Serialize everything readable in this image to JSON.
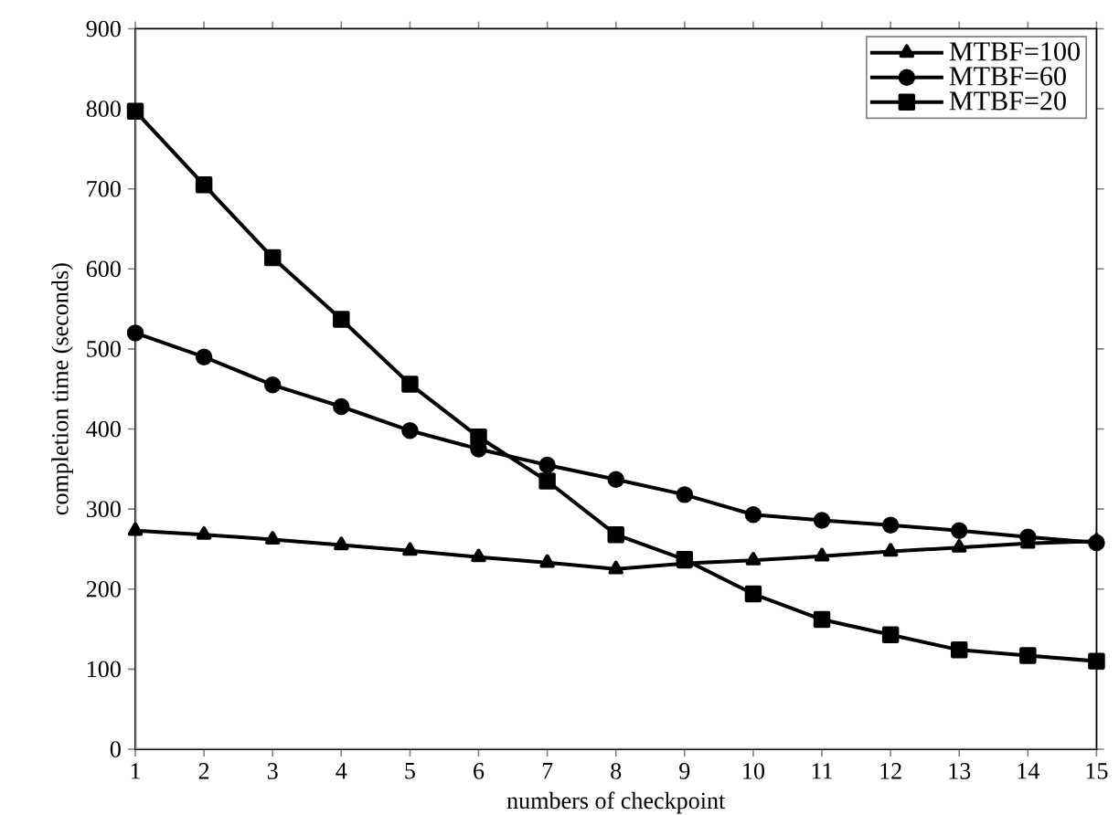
{
  "chart_data": {
    "type": "line",
    "xlabel": "numbers of checkpoint",
    "ylabel": "completion time (seconds)",
    "categories": [
      "1",
      "2",
      "3",
      "4",
      "5",
      "6",
      "7",
      "8",
      "9",
      "10",
      "11",
      "12",
      "13",
      "14",
      "15"
    ],
    "ylim": [
      0,
      900
    ],
    "yticks": [
      0,
      100,
      200,
      300,
      400,
      500,
      600,
      700,
      800,
      900
    ],
    "grid": false,
    "legend": "top right",
    "line_style": "solid",
    "series": [
      {
        "name": "MTBF=100",
        "color": "#000000",
        "marker": "triangle",
        "values": [
          273,
          268,
          262,
          255,
          248,
          240,
          233,
          225,
          232,
          236,
          241,
          247,
          252,
          257,
          260
        ]
      },
      {
        "name": "MTBF=60",
        "color": "#000000",
        "marker": "circle",
        "values": [
          520,
          490,
          455,
          428,
          398,
          375,
          355,
          337,
          318,
          293,
          286,
          280,
          273,
          265,
          258
        ]
      },
      {
        "name": "MTBF=20",
        "color": "#000000",
        "marker": "square",
        "values": [
          797,
          705,
          614,
          537,
          456,
          390,
          335,
          268,
          237,
          194,
          162,
          143,
          124,
          117,
          110
        ]
      }
    ]
  }
}
